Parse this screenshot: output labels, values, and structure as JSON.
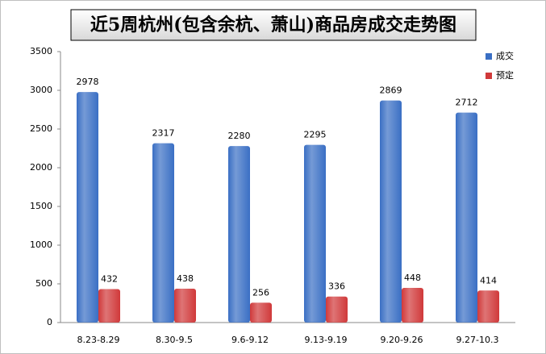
{
  "chart_data": {
    "type": "bar",
    "title": "近5周杭州(包含余杭、萧山)商品房成交走势图",
    "categories": [
      "8.23-8.29",
      "8.30-9.5",
      "9.6-9.12",
      "9.13-9.19",
      "9.20-9.26",
      "9.27-10.3"
    ],
    "series": [
      {
        "name": "成交",
        "color": "#3a6fc4",
        "values": [
          2978,
          2317,
          2280,
          2295,
          2869,
          2712
        ]
      },
      {
        "name": "预定",
        "color": "#d0393a",
        "values": [
          432,
          438,
          256,
          336,
          448,
          414
        ]
      }
    ],
    "ylim": [
      0,
      3500
    ],
    "yticks": [
      0,
      500,
      1000,
      1500,
      2000,
      2500,
      3000,
      3500
    ],
    "grid": false,
    "legend": "top-right"
  }
}
